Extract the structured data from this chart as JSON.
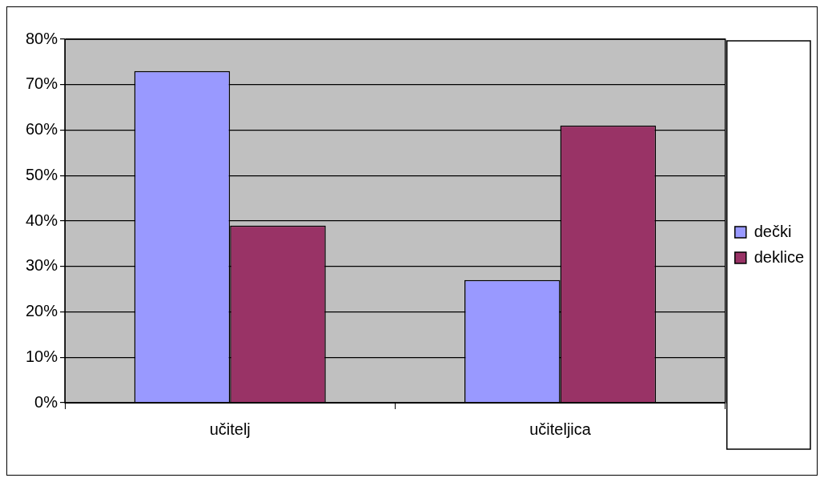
{
  "chart_data": {
    "type": "bar",
    "categories": [
      "učitelj",
      "učiteljica"
    ],
    "series": [
      {
        "name": "dečki",
        "color": "#9999ff",
        "values": [
          73,
          27
        ]
      },
      {
        "name": "deklice",
        "color": "#993366",
        "values": [
          39,
          61
        ]
      }
    ],
    "ylim": [
      0,
      80
    ],
    "yticks": [
      {
        "value": 0,
        "label": "0%"
      },
      {
        "value": 10,
        "label": "10%"
      },
      {
        "value": 20,
        "label": "20%"
      },
      {
        "value": 30,
        "label": "30%"
      },
      {
        "value": 40,
        "label": "40%"
      },
      {
        "value": 50,
        "label": "50%"
      },
      {
        "value": 60,
        "label": "60%"
      },
      {
        "value": 70,
        "label": "70%"
      },
      {
        "value": 80,
        "label": "80%"
      }
    ],
    "grid": "y",
    "legend": "right"
  }
}
